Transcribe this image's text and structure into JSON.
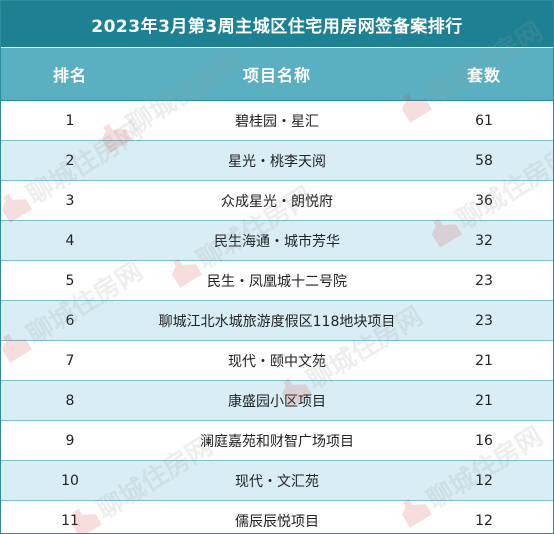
{
  "title": "2023年3月第3周主城区住宅用房网签备案排行",
  "columns": {
    "rank": "排名",
    "name": "项目名称",
    "count": "套数"
  },
  "rows": [
    {
      "rank": "1",
      "name": "碧桂园・星汇",
      "count": "61"
    },
    {
      "rank": "2",
      "name": "星光・桃李天阅",
      "count": "58"
    },
    {
      "rank": "3",
      "name": "众成星光・朗悦府",
      "count": "36"
    },
    {
      "rank": "4",
      "name": "民生海通・城市芳华",
      "count": "32"
    },
    {
      "rank": "5",
      "name": "民生・凤凰城十二号院",
      "count": "23"
    },
    {
      "rank": "6",
      "name": "聊城江北水城旅游度假区118地块项目",
      "count": "23"
    },
    {
      "rank": "7",
      "name": "现代・颐中文苑",
      "count": "21"
    },
    {
      "rank": "8",
      "name": "康盛园小区项目",
      "count": "21"
    },
    {
      "rank": "9",
      "name": "澜庭嘉苑和财智广场项目",
      "count": "16"
    },
    {
      "rank": "10",
      "name": "现代・文汇苑",
      "count": "12"
    },
    {
      "rank": "11",
      "name": "儒辰辰悦项目",
      "count": "12"
    }
  ],
  "watermark": {
    "text": "聊城住房网"
  },
  "colors": {
    "title_bg": "#1d8193",
    "header_bg": "#5ab0c0",
    "stripe_bg": "#d9eef4"
  }
}
